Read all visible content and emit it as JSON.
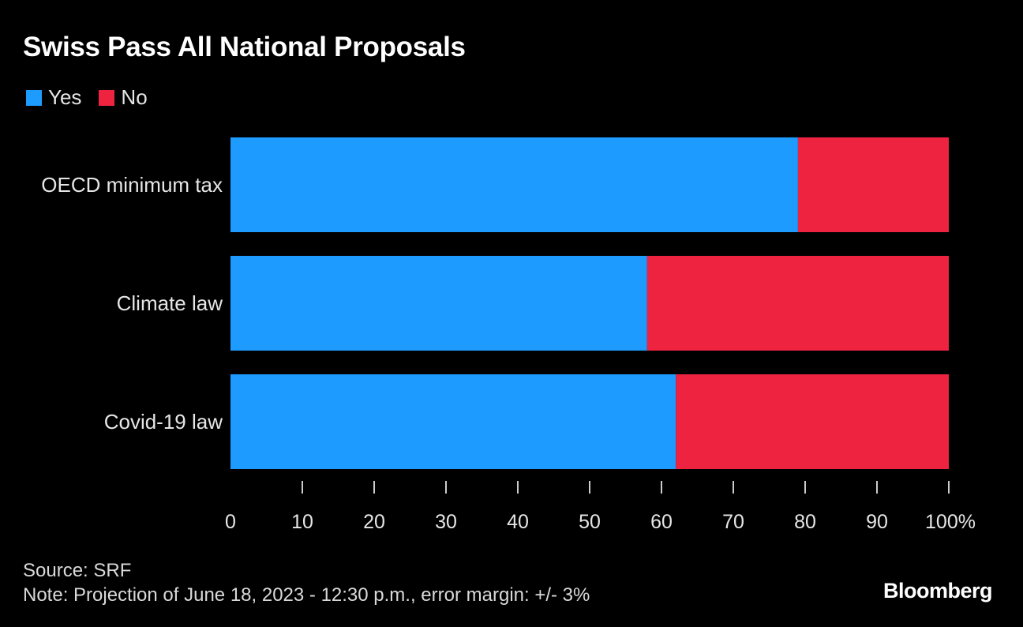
{
  "colors": {
    "background": "#000000",
    "yes": "#1d9bff",
    "no": "#ee2340",
    "axis": "#cccccc",
    "text": "#e6e6e6"
  },
  "legend": {
    "yes_label": "Yes",
    "no_label": "No"
  },
  "footer": {
    "source": "Source: SRF",
    "note": "Note: Projection of June 18, 2023 - 12:30 p.m., error margin: +/- 3%"
  },
  "brand": "Bloomberg",
  "chart_data": {
    "type": "bar",
    "orientation": "horizontal",
    "stacked": true,
    "title": "Swiss Pass All National Proposals",
    "categories": [
      "OECD minimum tax",
      "Climate law",
      "Covid-19 law"
    ],
    "series": [
      {
        "name": "Yes",
        "values": [
          79,
          58,
          62
        ]
      },
      {
        "name": "No",
        "values": [
          21,
          42,
          38
        ]
      }
    ],
    "xlim": [
      0,
      100
    ],
    "xticks": [
      0,
      10,
      20,
      30,
      40,
      50,
      60,
      70,
      80,
      90,
      100
    ],
    "xtick_suffix_last": "%",
    "xlabel": "",
    "ylabel": "",
    "legend_position": "top-left",
    "grid": false
  }
}
